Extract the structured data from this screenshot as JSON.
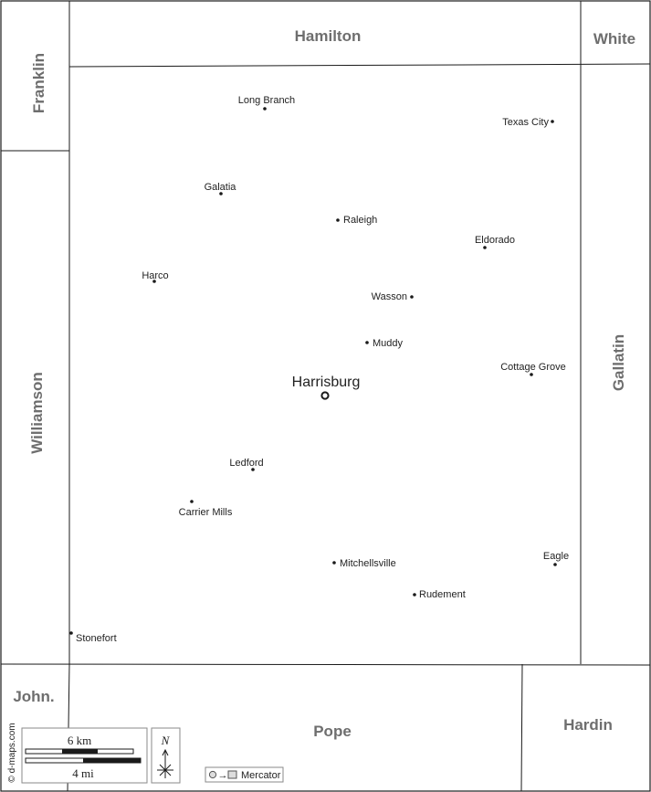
{
  "counties": {
    "hamilton": "Hamilton",
    "white": "White",
    "franklin": "Franklin",
    "williamson": "Williamson",
    "gallatin": "Gallatin",
    "johnson": "John.",
    "pope": "Pope",
    "hardin": "Hardin"
  },
  "seat": {
    "name": "Harrisburg"
  },
  "towns": {
    "long_branch": "Long Branch",
    "texas_city": "Texas City",
    "galatia": "Galatia",
    "raleigh": "Raleigh",
    "eldorado": "Eldorado",
    "harco": "Harco",
    "wasson": "Wasson",
    "muddy": "Muddy",
    "cottage_grove": "Cottage Grove",
    "ledford": "Ledford",
    "carrier_mills": "Carrier Mills",
    "mitchellsville": "Mitchellsville",
    "eagle": "Eagle",
    "rudement": "Rudement",
    "stonefort": "Stonefort"
  },
  "legend": {
    "credit": "© d-maps.com",
    "scale_km": "6 km",
    "scale_mi": "4 mi",
    "north": "N",
    "projection": "Mercator"
  },
  "colors": {
    "border": "#1a1a1a",
    "county_label": "#6e6e6e",
    "background": "#ffffff"
  }
}
